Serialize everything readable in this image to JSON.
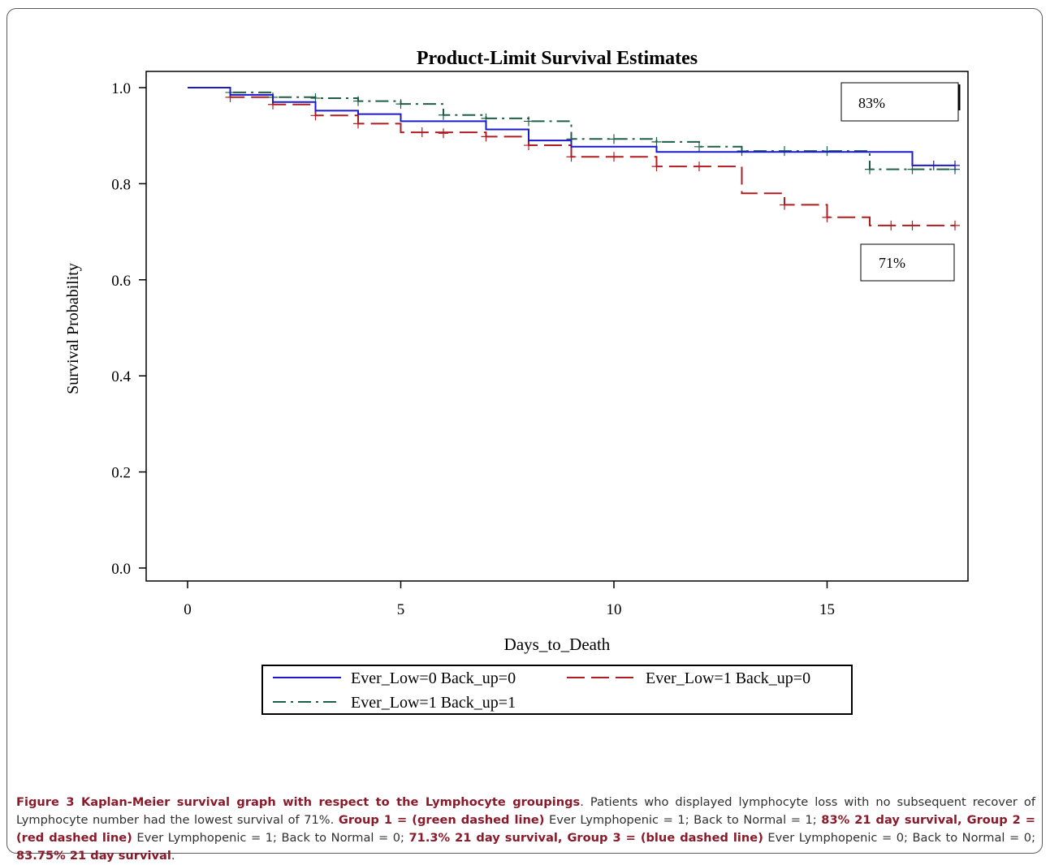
{
  "chart_data": {
    "type": "line",
    "title": "Product-Limit Survival Estimates",
    "xlabel": "Days_to_Death",
    "ylabel": "Survival Probability",
    "xlim": [
      0,
      18
    ],
    "ylim": [
      0,
      1
    ],
    "xticks": [
      "0",
      "5",
      "10",
      "15"
    ],
    "xtick_values": [
      0,
      5,
      10,
      15
    ],
    "yticks": [
      "0.0",
      "0.2",
      "0.4",
      "0.6",
      "0.8",
      "1.0"
    ],
    "ytick_values": [
      0,
      0.2,
      0.4,
      0.6,
      0.8,
      1.0
    ],
    "grid": false,
    "legend_position": "bottom",
    "series": [
      {
        "name": "Ever_Low=0 Back_up=0",
        "color": "#1a1acc",
        "dash": "solid",
        "steps": [
          [
            0,
            1.0
          ],
          [
            1,
            0.985
          ],
          [
            2,
            0.97
          ],
          [
            3,
            0.952
          ],
          [
            4,
            0.945
          ],
          [
            5,
            0.93
          ],
          [
            7,
            0.913
          ],
          [
            8,
            0.89
          ],
          [
            9,
            0.877
          ],
          [
            11,
            0.866
          ],
          [
            17,
            0.838
          ],
          [
            18,
            0.838
          ]
        ],
        "censored": [
          [
            17.5,
            0.838
          ],
          [
            18,
            0.838
          ]
        ]
      },
      {
        "name": "Ever_Low=1 Back_up=0",
        "color": "#b01c20",
        "dash": "long",
        "steps": [
          [
            0,
            1.0
          ],
          [
            1,
            0.98
          ],
          [
            2,
            0.965
          ],
          [
            3,
            0.942
          ],
          [
            4,
            0.925
          ],
          [
            5,
            0.907
          ],
          [
            7,
            0.898
          ],
          [
            8,
            0.88
          ],
          [
            9,
            0.856
          ],
          [
            11,
            0.836
          ],
          [
            13,
            0.78
          ],
          [
            14,
            0.756
          ],
          [
            15,
            0.73
          ],
          [
            16,
            0.713
          ],
          [
            18,
            0.713
          ]
        ],
        "censored": [
          [
            1,
            0.98
          ],
          [
            2,
            0.965
          ],
          [
            3,
            0.942
          ],
          [
            4,
            0.925
          ],
          [
            5.5,
            0.907
          ],
          [
            6,
            0.905
          ],
          [
            7,
            0.898
          ],
          [
            8,
            0.88
          ],
          [
            9,
            0.856
          ],
          [
            10,
            0.856
          ],
          [
            11,
            0.836
          ],
          [
            12,
            0.836
          ],
          [
            14,
            0.756
          ],
          [
            15,
            0.73
          ],
          [
            16.5,
            0.713
          ],
          [
            17,
            0.713
          ],
          [
            18,
            0.713
          ]
        ]
      },
      {
        "name": "Ever_Low=1 Back_up=1",
        "color": "#1d5e44",
        "dash": "dashdot",
        "steps": [
          [
            0,
            1.0
          ],
          [
            1,
            0.99
          ],
          [
            2,
            0.98
          ],
          [
            3,
            0.978
          ],
          [
            4,
            0.972
          ],
          [
            5,
            0.966
          ],
          [
            6,
            0.943
          ],
          [
            7,
            0.936
          ],
          [
            8,
            0.93
          ],
          [
            9,
            0.893
          ],
          [
            11,
            0.887
          ],
          [
            12,
            0.877
          ],
          [
            13,
            0.868
          ],
          [
            16,
            0.83
          ],
          [
            18,
            0.83
          ]
        ],
        "censored": [
          [
            1,
            0.99
          ],
          [
            2,
            0.98
          ],
          [
            3,
            0.978
          ],
          [
            4,
            0.972
          ],
          [
            5,
            0.966
          ],
          [
            6,
            0.943
          ],
          [
            7,
            0.936
          ],
          [
            8,
            0.93
          ],
          [
            9,
            0.893
          ],
          [
            10,
            0.893
          ],
          [
            11,
            0.887
          ],
          [
            12,
            0.877
          ],
          [
            13,
            0.868
          ],
          [
            14,
            0.868
          ],
          [
            15,
            0.868
          ],
          [
            16,
            0.83
          ],
          [
            17,
            0.83
          ],
          [
            18,
            0.83
          ]
        ]
      }
    ],
    "annotations": [
      "83%",
      "71%"
    ]
  },
  "caption": {
    "figure_label": "Figure 3 Kaplan-Meier survival graph with respect to the Lymphocyte groupings",
    "t1": ". Patients who displayed lymphocyte loss with no subsequent recover of Lymphocyte number had the lowest survival of 71%. ",
    "b1": "Group 1 = (green dashed line)",
    "t2": " Ever Lymphopenic = 1; Back to Normal = 1; ",
    "b2": "83% 21 day survival, Group 2 = (red dashed line)",
    "t3": " Ever Lymphopenic = 1; Back to Normal = 0; ",
    "b3": "71.3% 21 day survival, Group 3 = (blue dashed line)",
    "t4": " Ever Lymphopenic = 0; Back to Normal = 0; ",
    "b4": "83.75% 21 day survival",
    "t5": "."
  }
}
